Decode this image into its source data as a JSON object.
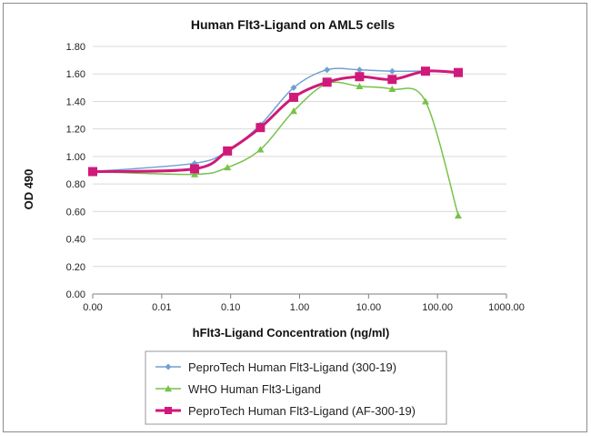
{
  "chart_data": {
    "type": "line",
    "title": "Human Flt3-Ligand on AML5 cells",
    "xlabel": "hFlt3-Ligand Concentration (ng/ml)",
    "ylabel": "OD 490",
    "x_scale": "log",
    "xlim": [
      0.001,
      1000
    ],
    "ylim": [
      0,
      1.8
    ],
    "x_tick_values": [
      0.001,
      0.01,
      0.1,
      1,
      10,
      100,
      1000
    ],
    "x_tick_labels": [
      "0.00",
      "0.01",
      "0.10",
      "1.00",
      "10.00",
      "100.00",
      "1000.00"
    ],
    "y_tick_values": [
      0,
      0.2,
      0.4,
      0.6,
      0.8,
      1.0,
      1.2,
      1.4,
      1.6,
      1.8
    ],
    "y_tick_labels": [
      "0.00",
      "0.20",
      "0.40",
      "0.60",
      "0.80",
      "1.00",
      "1.20",
      "1.40",
      "1.60",
      "1.80"
    ],
    "grid": "horizontal",
    "legend_position": "bottom",
    "series": [
      {
        "name": "PeproTech Human Flt3-Ligand (300-19)",
        "color": "#6fa0d2",
        "marker": "diamond",
        "x": [
          0.001,
          0.03,
          0.09,
          0.27,
          0.82,
          2.5,
          7.4,
          22,
          67,
          200
        ],
        "y": [
          0.89,
          0.95,
          1.04,
          1.23,
          1.5,
          1.63,
          1.63,
          1.62,
          1.62,
          1.61
        ]
      },
      {
        "name": "WHO Human Flt3-Ligand",
        "color": "#77c24a",
        "marker": "triangle",
        "x": [
          0.001,
          0.03,
          0.09,
          0.27,
          0.82,
          2.5,
          7.4,
          22,
          67,
          200
        ],
        "y": [
          0.89,
          0.87,
          0.92,
          1.05,
          1.33,
          1.53,
          1.51,
          1.49,
          1.4,
          0.57
        ]
      },
      {
        "name": "PeproTech Human Flt3-Ligand (AF-300-19)",
        "color": "#d0197a",
        "marker": "square",
        "x": [
          0.001,
          0.03,
          0.09,
          0.27,
          0.82,
          2.5,
          7.4,
          22,
          67,
          200
        ],
        "y": [
          0.89,
          0.91,
          1.04,
          1.21,
          1.43,
          1.54,
          1.58,
          1.56,
          1.62,
          1.61
        ]
      }
    ]
  }
}
